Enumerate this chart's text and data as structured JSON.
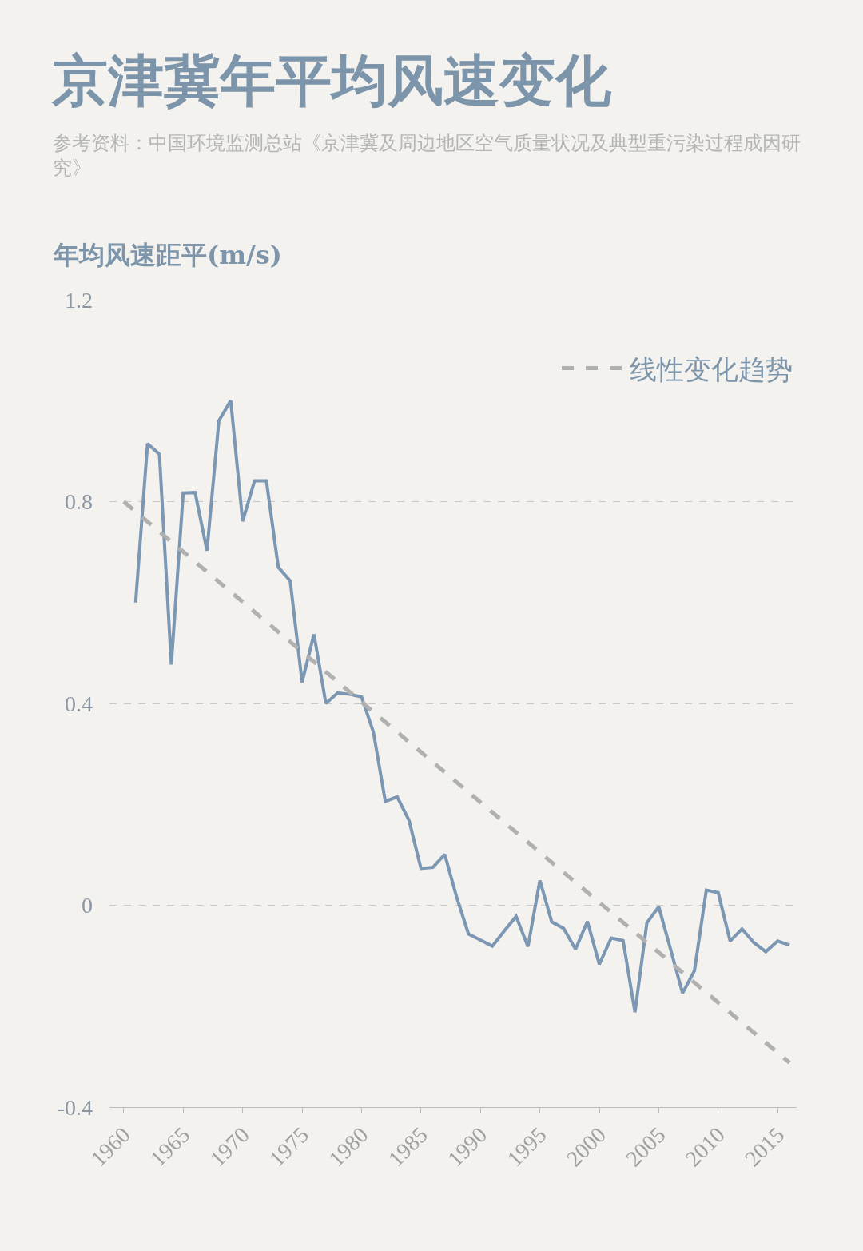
{
  "chart_data": {
    "type": "line",
    "title": "京津冀年平均风速变化",
    "subtitle": "参考资料：中国环境监测总站《京津冀及周边地区空气质量状况及典型重污染过程成因研究》",
    "ylabel": "年均风速距平(m/s)",
    "x": [
      1961,
      1962,
      1963,
      1964,
      1965,
      1966,
      1967,
      1968,
      1969,
      1970,
      1971,
      1972,
      1973,
      1974,
      1975,
      1976,
      1977,
      1978,
      1979,
      1980,
      1981,
      1982,
      1983,
      1984,
      1985,
      1986,
      1987,
      1988,
      1989,
      1990,
      1991,
      1992,
      1993,
      1994,
      1995,
      1996,
      1997,
      1998,
      1999,
      2000,
      2001,
      2002,
      2003,
      2004,
      2005,
      2006,
      2007,
      2008,
      2009,
      2010,
      2011,
      2012,
      2013,
      2014,
      2015,
      2016
    ],
    "series": [
      {
        "color": "#7b97b3",
        "values": [
          0.6,
          0.915,
          0.894,
          0.477,
          0.817,
          0.818,
          0.703,
          0.96,
          1.0,
          0.761,
          0.841,
          0.841,
          0.67,
          0.643,
          0.442,
          0.537,
          0.4,
          0.421,
          0.418,
          0.413,
          0.343,
          0.206,
          0.215,
          0.168,
          0.073,
          0.075,
          0.101,
          0.016,
          -0.057,
          -0.069,
          -0.081,
          -0.051,
          -0.022,
          -0.082,
          0.049,
          -0.033,
          -0.046,
          -0.087,
          -0.032,
          -0.117,
          -0.065,
          -0.07,
          -0.212,
          -0.035,
          -0.003,
          -0.088,
          -0.174,
          -0.13,
          0.03,
          0.025,
          -0.071,
          -0.047,
          -0.074,
          -0.092,
          -0.071,
          -0.079
        ]
      },
      {
        "name": "线性变化趋势",
        "color": "#b0b0b0",
        "line_style": "dashed",
        "x": [
          1960,
          2016
        ],
        "values": [
          0.8,
          -0.312
        ]
      }
    ],
    "xlim": [
      1958.8,
      2016.6
    ],
    "xticks": [
      1960,
      1965,
      1970,
      1975,
      1980,
      1985,
      1990,
      1995,
      2000,
      2005,
      2010,
      2015
    ],
    "ylim": [
      -0.4,
      1.2
    ],
    "yticks": [
      {
        "value": 1.2,
        "label": "1.2"
      },
      {
        "value": 0.8,
        "label": "0.8"
      },
      {
        "value": 0.4,
        "label": "0.4"
      },
      0,
      {
        "value": -0.4,
        "label": "-0.4"
      }
    ],
    "grid": "y",
    "legend": "top right"
  }
}
